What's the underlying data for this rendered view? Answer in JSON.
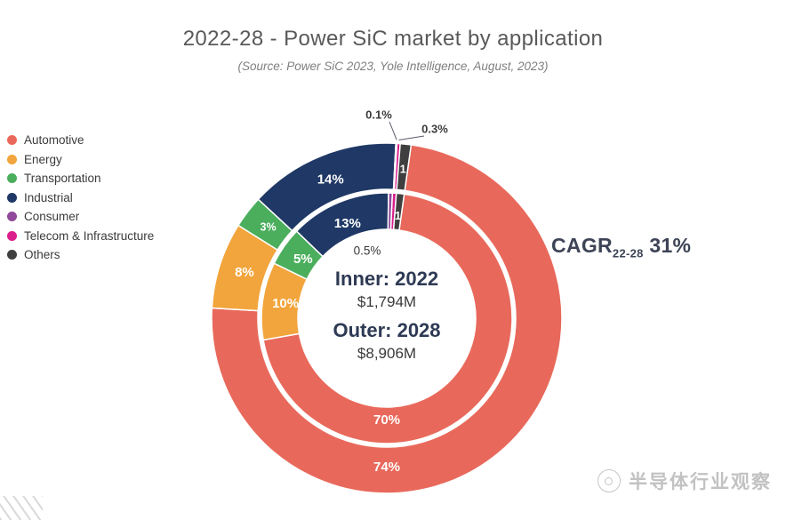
{
  "chart_data": {
    "type": "donut",
    "title": "2022-28 - Power SiC market by application",
    "subtitle": "(Source: Power SiC 2023, Yole Intelligence, August, 2023)",
    "legend_position": "left",
    "unit": "% of market value",
    "categories": [
      "Automotive",
      "Energy",
      "Transportation",
      "Industrial",
      "Consumer",
      "Telecom & Infrastructure",
      "Others"
    ],
    "colors": [
      "#E8695B",
      "#F2A53C",
      "#4BAE5D",
      "#1F3865",
      "#91499B",
      "#DB1F8D",
      "#3F3F3F"
    ],
    "series": [
      {
        "name": "Inner: 2022",
        "ring": "inner",
        "total": "$1,794M",
        "values": [
          70,
          10,
          5,
          13,
          0.5,
          0.5,
          1
        ],
        "labels": [
          "70%",
          "10%",
          "5%",
          "13%",
          "0.5%",
          "",
          "1"
        ]
      },
      {
        "name": "Outer: 2028",
        "ring": "outer",
        "total": "$8,906M",
        "values": [
          74,
          8,
          3,
          14,
          0.1,
          0.3,
          1
        ],
        "labels": [
          "74%",
          "8%",
          "3%",
          "14%",
          "0.1%",
          "0.3%",
          "1"
        ]
      }
    ],
    "cagr": {
      "label": "CAGR",
      "subscript": "22-28",
      "value": "31%"
    }
  },
  "watermark": {
    "text": "半导体行业观察"
  }
}
